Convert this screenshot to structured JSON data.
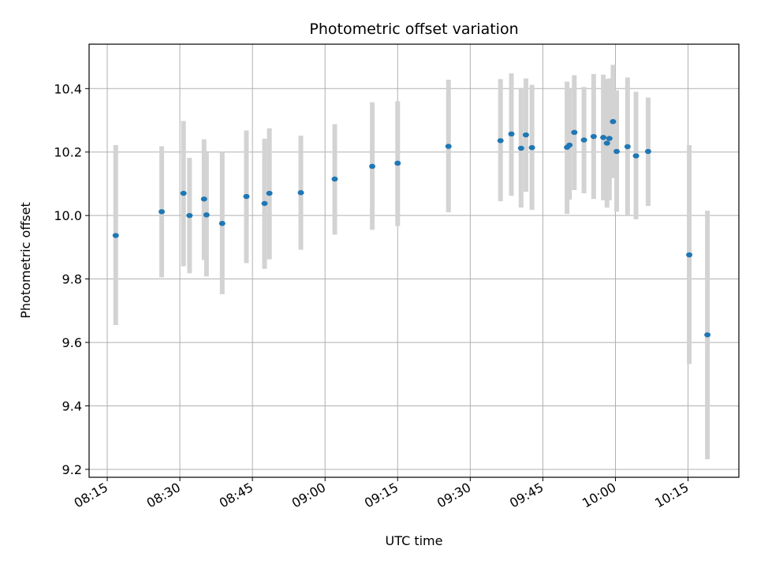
{
  "chart_data": {
    "type": "scatter",
    "title": "Photometric offset variation",
    "xlabel": "UTC time",
    "ylabel": "Photometric offset",
    "x_tick_labels": [
      "08:15",
      "08:30",
      "08:45",
      "09:00",
      "09:15",
      "09:30",
      "09:45",
      "10:00",
      "10:15"
    ],
    "y_tick_labels": [
      "9.2",
      "9.4",
      "9.6",
      "9.8",
      "10.0",
      "10.2",
      "10.4"
    ],
    "y_ticks": [
      9.2,
      9.4,
      9.6,
      9.8,
      10.0,
      10.2,
      10.4
    ],
    "xlim": [
      "08:11:15",
      "10:25:30"
    ],
    "ylim": [
      9.175,
      10.54
    ],
    "grid": true,
    "colors": {
      "point": "#1f77b4",
      "errorbar": "#d3d3d3",
      "grid": "#b0b0b0"
    },
    "points": [
      {
        "x": "08:16:45",
        "y": 9.937,
        "ylow": 9.655,
        "yhigh": 10.222
      },
      {
        "x": "08:26:15",
        "y": 10.012,
        "ylow": 9.805,
        "yhigh": 10.218
      },
      {
        "x": "08:30:45",
        "y": 10.07,
        "ylow": 9.84,
        "yhigh": 10.298
      },
      {
        "x": "08:32:00",
        "y": 10.0,
        "ylow": 9.818,
        "yhigh": 10.182
      },
      {
        "x": "08:35:00",
        "y": 10.052,
        "ylow": 9.86,
        "yhigh": 10.24
      },
      {
        "x": "08:35:30",
        "y": 10.002,
        "ylow": 9.808,
        "yhigh": 10.198
      },
      {
        "x": "08:38:45",
        "y": 9.975,
        "ylow": 9.752,
        "yhigh": 10.2
      },
      {
        "x": "08:43:45",
        "y": 10.06,
        "ylow": 9.85,
        "yhigh": 10.268
      },
      {
        "x": "08:47:30",
        "y": 10.038,
        "ylow": 9.832,
        "yhigh": 10.242
      },
      {
        "x": "08:48:30",
        "y": 10.07,
        "ylow": 9.862,
        "yhigh": 10.275
      },
      {
        "x": "08:55:00",
        "y": 10.072,
        "ylow": 9.892,
        "yhigh": 10.252
      },
      {
        "x": "09:02:00",
        "y": 10.115,
        "ylow": 9.94,
        "yhigh": 10.288
      },
      {
        "x": "09:09:45",
        "y": 10.155,
        "ylow": 9.955,
        "yhigh": 10.357
      },
      {
        "x": "09:15:00",
        "y": 10.165,
        "ylow": 9.967,
        "yhigh": 10.36
      },
      {
        "x": "09:25:30",
        "y": 10.218,
        "ylow": 10.01,
        "yhigh": 10.428
      },
      {
        "x": "09:36:15",
        "y": 10.236,
        "ylow": 10.045,
        "yhigh": 10.43
      },
      {
        "x": "09:38:30",
        "y": 10.257,
        "ylow": 10.062,
        "yhigh": 10.448
      },
      {
        "x": "09:40:30",
        "y": 10.212,
        "ylow": 10.025,
        "yhigh": 10.402
      },
      {
        "x": "09:41:30",
        "y": 10.254,
        "ylow": 10.075,
        "yhigh": 10.432
      },
      {
        "x": "09:42:45",
        "y": 10.214,
        "ylow": 10.018,
        "yhigh": 10.412
      },
      {
        "x": "09:50:00",
        "y": 10.215,
        "ylow": 10.005,
        "yhigh": 10.422
      },
      {
        "x": "09:50:30",
        "y": 10.222,
        "ylow": 10.05,
        "yhigh": 10.4
      },
      {
        "x": "09:51:30",
        "y": 10.262,
        "ylow": 10.08,
        "yhigh": 10.442
      },
      {
        "x": "09:53:30",
        "y": 10.238,
        "ylow": 10.07,
        "yhigh": 10.405
      },
      {
        "x": "09:55:30",
        "y": 10.249,
        "ylow": 10.052,
        "yhigh": 10.446
      },
      {
        "x": "09:57:30",
        "y": 10.246,
        "ylow": 10.048,
        "yhigh": 10.444
      },
      {
        "x": "09:58:15",
        "y": 10.228,
        "ylow": 10.025,
        "yhigh": 10.43
      },
      {
        "x": "09:58:45",
        "y": 10.243,
        "ylow": 10.048,
        "yhigh": 10.432
      },
      {
        "x": "09:59:30",
        "y": 10.296,
        "ylow": 10.118,
        "yhigh": 10.475
      },
      {
        "x": "10:00:15",
        "y": 10.202,
        "ylow": 10.012,
        "yhigh": 10.395
      },
      {
        "x": "10:02:30",
        "y": 10.217,
        "ylow": 10.0,
        "yhigh": 10.435
      },
      {
        "x": "10:04:15",
        "y": 10.188,
        "ylow": 9.988,
        "yhigh": 10.39
      },
      {
        "x": "10:06:45",
        "y": 10.202,
        "ylow": 10.03,
        "yhigh": 10.372
      },
      {
        "x": "10:15:15",
        "y": 9.876,
        "ylow": 9.532,
        "yhigh": 10.222
      },
      {
        "x": "10:19:00",
        "y": 9.624,
        "ylow": 9.232,
        "yhigh": 10.015
      }
    ]
  }
}
